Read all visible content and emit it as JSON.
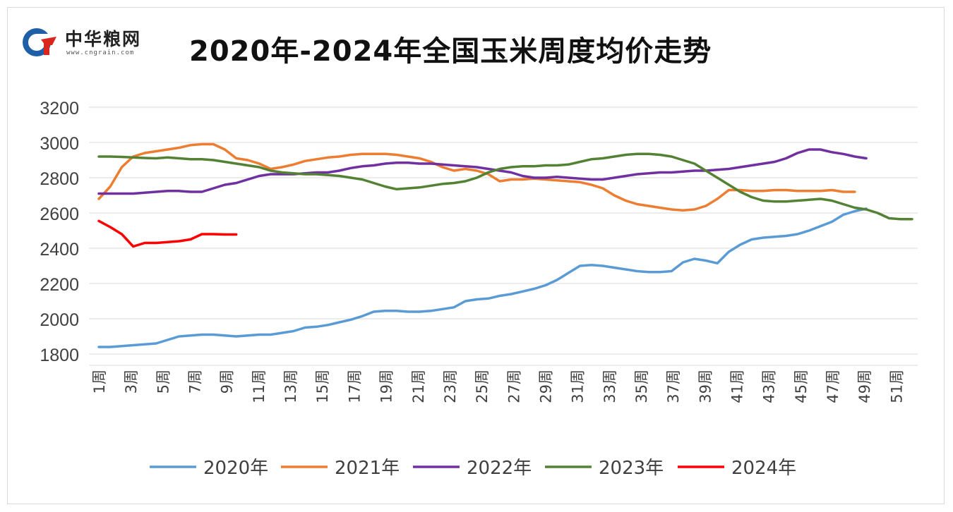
{
  "logo": {
    "name": "中华粮网",
    "url": "www.cngrain.com",
    "icon": "cngrain-logo-icon"
  },
  "chart_data": {
    "type": "line",
    "title": "2020年-2024年全国玉米周度均价走势",
    "xlabel": "",
    "ylabel": "",
    "ylim": [
      1800,
      3200
    ],
    "yticks": [
      1800,
      2000,
      2200,
      2400,
      2600,
      2800,
      3000,
      3200
    ],
    "xticks": [
      "1周",
      "3周",
      "5周",
      "7周",
      "9周",
      "11周",
      "13周",
      "15周",
      "17周",
      "19周",
      "21周",
      "23周",
      "25周",
      "27周",
      "29周",
      "31周",
      "33周",
      "35周",
      "37周",
      "39周",
      "41周",
      "43周",
      "45周",
      "47周",
      "49周",
      "51周"
    ],
    "week_count": 52,
    "grid": true,
    "legend_position": "bottom",
    "series": [
      {
        "name": "2020年",
        "color": "#5b9bd5",
        "values": [
          1840,
          1840,
          1845,
          1850,
          1855,
          1860,
          1880,
          1900,
          1905,
          1910,
          1910,
          1905,
          1900,
          1905,
          1910,
          1910,
          1920,
          1930,
          1950,
          1955,
          1965,
          1980,
          1995,
          2015,
          2040,
          2045,
          2045,
          2040,
          2040,
          2045,
          2055,
          2065,
          2100,
          2110,
          2115,
          2130,
          2140,
          2155,
          2170,
          2190,
          2220,
          2260,
          2300,
          2305,
          2300,
          2290,
          2280,
          2270,
          2265,
          2265,
          2270,
          2320,
          2340,
          2330,
          2315,
          2380,
          2420,
          2450,
          2460,
          2465,
          2470,
          2480,
          2500,
          2525,
          2550,
          2590,
          2610,
          2625
        ]
      },
      {
        "name": "2021年",
        "color": "#ed7d31",
        "values": [
          2680,
          2750,
          2860,
          2920,
          2940,
          2950,
          2960,
          2970,
          2985,
          2990,
          2990,
          2960,
          2910,
          2900,
          2880,
          2850,
          2860,
          2875,
          2895,
          2905,
          2915,
          2920,
          2930,
          2935,
          2935,
          2935,
          2930,
          2920,
          2910,
          2890,
          2860,
          2840,
          2850,
          2840,
          2820,
          2780,
          2790,
          2790,
          2795,
          2790,
          2785,
          2780,
          2775,
          2760,
          2740,
          2700,
          2670,
          2650,
          2640,
          2630,
          2620,
          2615,
          2620,
          2640,
          2680,
          2730,
          2730,
          2725,
          2725,
          2730,
          2730,
          2725,
          2725,
          2725,
          2730,
          2720,
          2720
        ]
      },
      {
        "name": "2022年",
        "color": "#7030a0",
        "values": [
          2710,
          2710,
          2710,
          2710,
          2715,
          2720,
          2725,
          2725,
          2720,
          2720,
          2740,
          2760,
          2770,
          2790,
          2810,
          2820,
          2820,
          2820,
          2825,
          2830,
          2830,
          2840,
          2855,
          2865,
          2870,
          2880,
          2885,
          2885,
          2880,
          2880,
          2875,
          2870,
          2865,
          2860,
          2850,
          2840,
          2830,
          2810,
          2800,
          2800,
          2805,
          2800,
          2795,
          2790,
          2790,
          2800,
          2810,
          2820,
          2825,
          2830,
          2830,
          2835,
          2840,
          2840,
          2845,
          2850,
          2860,
          2870,
          2880,
          2890,
          2910,
          2940,
          2960,
          2960,
          2945,
          2935,
          2920,
          2910
        ]
      },
      {
        "name": "2023年",
        "color": "#548235",
        "values": [
          2920,
          2920,
          2918,
          2915,
          2912,
          2910,
          2915,
          2910,
          2905,
          2905,
          2900,
          2890,
          2880,
          2870,
          2860,
          2840,
          2830,
          2825,
          2820,
          2820,
          2815,
          2810,
          2800,
          2790,
          2770,
          2750,
          2735,
          2740,
          2745,
          2755,
          2765,
          2770,
          2780,
          2800,
          2830,
          2850,
          2860,
          2865,
          2865,
          2870,
          2870,
          2875,
          2890,
          2905,
          2910,
          2920,
          2930,
          2935,
          2935,
          2930,
          2920,
          2900,
          2880,
          2840,
          2800,
          2760,
          2720,
          2690,
          2670,
          2665,
          2665,
          2670,
          2675,
          2680,
          2670,
          2650,
          2630,
          2620,
          2600,
          2570,
          2565,
          2565
        ]
      },
      {
        "name": "2024年",
        "color": "#ff0000",
        "values": [
          2555,
          2520,
          2480,
          2410,
          2430,
          2430,
          2435,
          2440,
          2450,
          2480,
          2480,
          2478,
          2478
        ]
      }
    ]
  }
}
